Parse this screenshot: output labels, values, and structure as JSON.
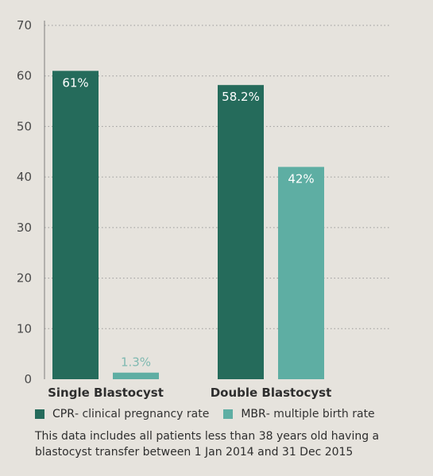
{
  "chart_data": {
    "type": "bar",
    "categories": [
      "Single Blastocyst",
      "Double Blastocyst"
    ],
    "series": [
      {
        "name": "CPR",
        "values": [
          61,
          58.2
        ],
        "labels": [
          "61%",
          "58.2%"
        ],
        "color": "#256b5b"
      },
      {
        "name": "MBR",
        "values": [
          1.3,
          42
        ],
        "labels": [
          "1.3%",
          "42%"
        ],
        "color": "#5eaea3"
      }
    ],
    "ylim": [
      0,
      70
    ],
    "yticks": [
      "0",
      "10",
      "20",
      "30",
      "40",
      "50",
      "60",
      "70"
    ],
    "grid": "dotted horizontal"
  },
  "legend": [
    {
      "code": "CPR",
      "description": " - clinical pregnancy rate",
      "color": "#256b5b"
    },
    {
      "code": "MBR",
      "description": " - multiple birth rate",
      "color": "#5eaea3"
    }
  ],
  "footnote": "This data includes all patients less than 38 years old having a blastocyst transfer between 1 Jan 2014 and 31 Dec 2015"
}
